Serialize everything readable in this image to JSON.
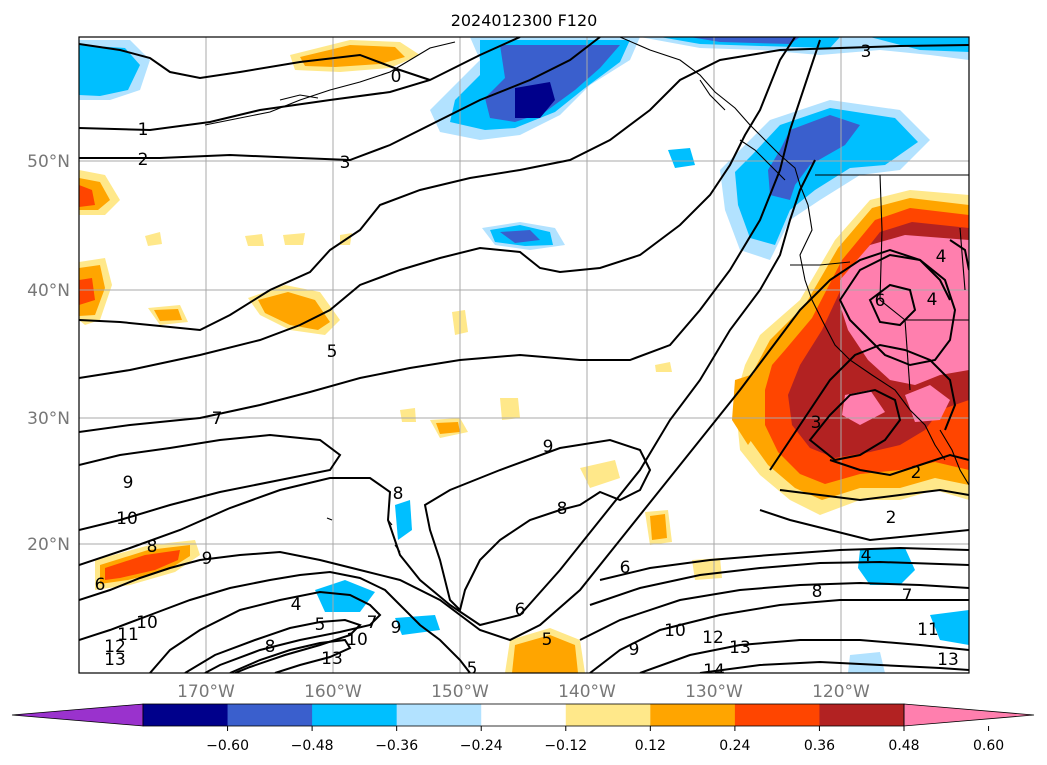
{
  "title": "2024012300 F120",
  "lat_labels": [
    "50°N",
    "40°N",
    "30°N",
    "20°N"
  ],
  "lon_labels": [
    "170°W",
    "160°W",
    "150°W",
    "140°W",
    "130°W",
    "120°W"
  ],
  "colorbar": {
    "ticks": [
      "−0.60",
      "−0.48",
      "−0.36",
      "−0.24",
      "−0.12",
      "0.12",
      "0.24",
      "0.36",
      "0.48",
      "0.60"
    ],
    "colors": [
      "#9a32cd",
      "#00008b",
      "#3a5fcd",
      "#00bfff",
      "#b2e2ff",
      "#ffffff",
      "#ffe88a",
      "#ffa500",
      "#ff4500",
      "#b22222",
      "#ff7fae"
    ]
  },
  "contour_labels": [
    {
      "t": "0"
    },
    {
      "t": "1"
    },
    {
      "t": "2"
    },
    {
      "t": "3"
    },
    {
      "t": "3"
    },
    {
      "t": "5"
    },
    {
      "t": "7"
    },
    {
      "t": "9"
    },
    {
      "t": "9"
    },
    {
      "t": "10"
    },
    {
      "t": "8"
    },
    {
      "t": "9"
    },
    {
      "t": "8"
    },
    {
      "t": "8"
    },
    {
      "t": "6"
    },
    {
      "t": "6"
    },
    {
      "t": "4"
    },
    {
      "t": "5"
    },
    {
      "t": "7"
    },
    {
      "t": "10"
    },
    {
      "t": "9"
    },
    {
      "t": "6"
    },
    {
      "t": "5"
    },
    {
      "t": "9"
    },
    {
      "t": "10"
    },
    {
      "t": "12"
    },
    {
      "t": "13"
    },
    {
      "t": "14"
    },
    {
      "t": "8"
    },
    {
      "t": "7"
    },
    {
      "t": "4"
    },
    {
      "t": "2"
    },
    {
      "t": "2"
    },
    {
      "t": "3"
    },
    {
      "t": "6"
    },
    {
      "t": "4"
    },
    {
      "t": "4"
    },
    {
      "t": "11"
    },
    {
      "t": "13"
    },
    {
      "t": "10"
    },
    {
      "t": "11"
    },
    {
      "t": "12"
    },
    {
      "t": "13"
    },
    {
      "t": "5"
    },
    {
      "t": "13"
    },
    {
      "t": "8"
    }
  ]
}
